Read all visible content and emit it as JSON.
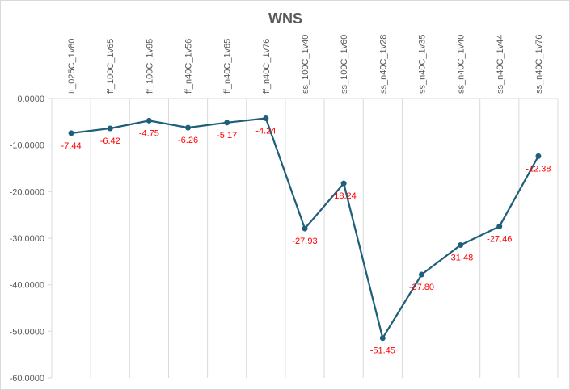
{
  "chart_data": {
    "type": "line",
    "title": "WNS",
    "categories": [
      "tt_025C_1v80",
      "ff_100C_1v65",
      "ff_100C_1v95",
      "ff_n40C_1v56",
      "ff_n40C_1v65",
      "ff_n40C_1v76",
      "ss_100C_1v40",
      "ss_100C_1v60",
      "ss_n40C_1v28",
      "ss_n40C_1v35",
      "ss_n40C_1v40",
      "ss_n40C_1v44",
      "ss_n40C_1v76"
    ],
    "values": [
      -7.44,
      -6.42,
      -4.75,
      -6.26,
      -5.17,
      -4.24,
      -27.93,
      -18.24,
      -51.45,
      -37.8,
      -31.48,
      -27.46,
      -12.38
    ],
    "data_labels": [
      "-7.44",
      "-6.42",
      "-4.75",
      "-6.26",
      "-5.17",
      "-4.24",
      "-27.93",
      "-18.24",
      "-51.45",
      "-37.80",
      "-31.48",
      "-27.46",
      "-12.38"
    ],
    "ylim": [
      -60,
      0
    ],
    "y_ticks": [
      0,
      -10,
      -20,
      -30,
      -40,
      -50,
      -60
    ],
    "y_tick_labels": [
      "0.0000",
      "-10.0000",
      "-20.0000",
      "-30.0000",
      "-40.0000",
      "-50.0000",
      "-60.0000"
    ],
    "xlabel": "",
    "ylabel": "",
    "x_axis_position": "top",
    "grid": "vertical",
    "legend": "none",
    "colors": {
      "line": "#1f5f7a",
      "marker": "#1f5f7a",
      "data_label": "#ff0000",
      "grid": "#d9d9d9",
      "axis_text": "#595959",
      "title": "#595959"
    }
  }
}
